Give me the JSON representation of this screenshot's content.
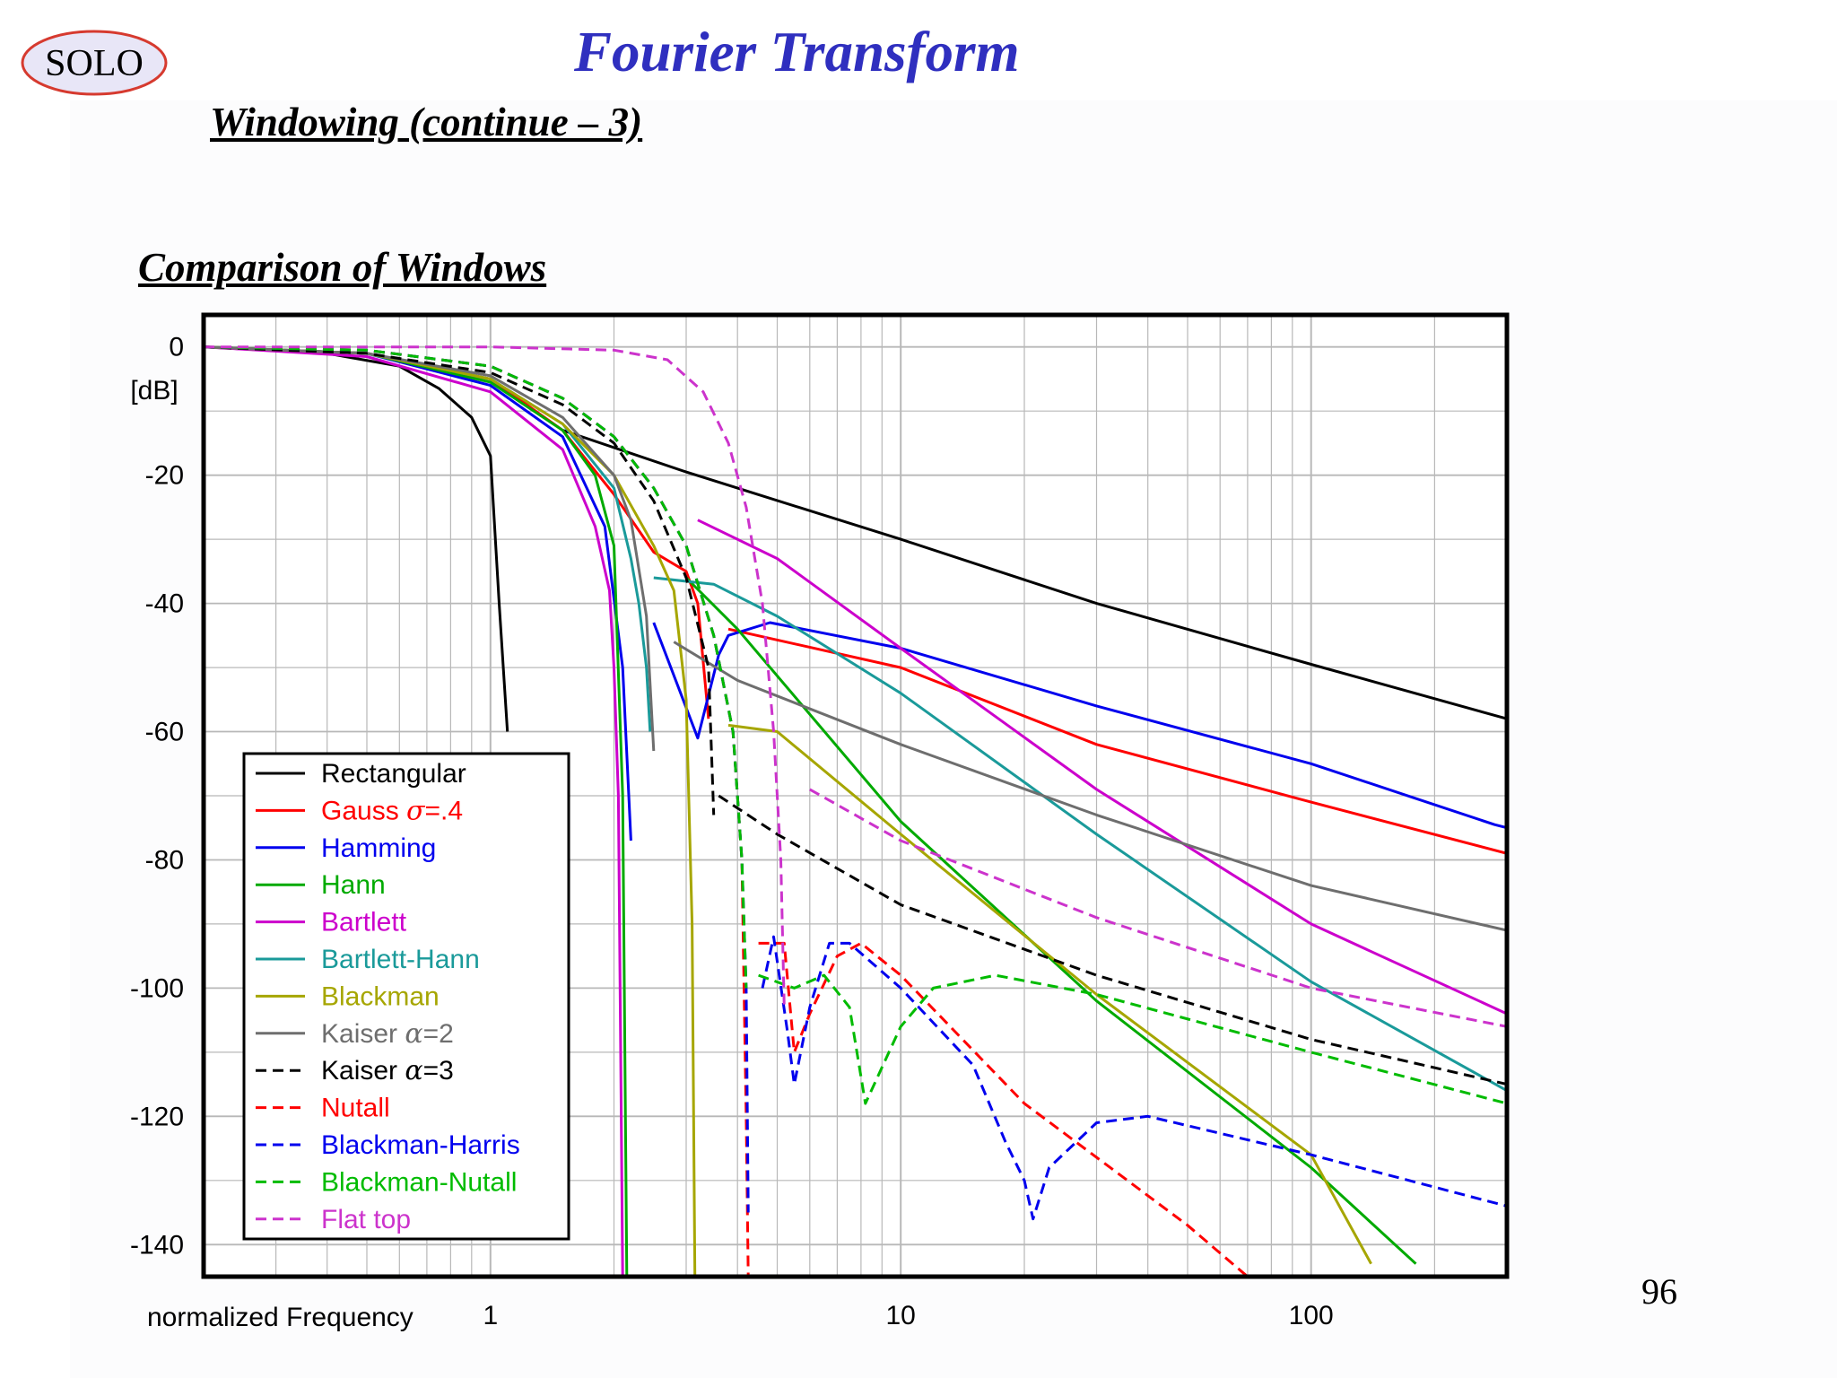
{
  "header": {
    "logo_text": "SOLO",
    "title": "Fourier Transform",
    "subtitle": "Windowing (continue – 3)",
    "section": "Comparison of Windows",
    "page_number": "96"
  },
  "colors": {
    "title": "#2f2fbf",
    "logo_fill": "#e8e6f7",
    "logo_stroke": "#d63a2f"
  },
  "chart_data": {
    "type": "line",
    "x_scale": "log",
    "xlim": [
      0.2,
      300
    ],
    "ylim": [
      -145,
      5
    ],
    "xlabel": "normalized Frequency",
    "ylabel": "[dB]",
    "x_ticks": [
      {
        "value": 1,
        "label": "1"
      },
      {
        "value": 10,
        "label": "10"
      },
      {
        "value": 100,
        "label": "100"
      }
    ],
    "y_ticks": [
      {
        "value": 0,
        "label": "0"
      },
      {
        "value": -20,
        "label": "-20"
      },
      {
        "value": -40,
        "label": "-40"
      },
      {
        "value": -60,
        "label": "-60"
      },
      {
        "value": -80,
        "label": "-80"
      },
      {
        "value": -100,
        "label": "-100"
      },
      {
        "value": -120,
        "label": "-120"
      },
      {
        "value": -140,
        "label": "-140"
      }
    ],
    "grid": true,
    "legend_position": "bottom-left",
    "series": [
      {
        "name": "Rectangular",
        "label_prefix": "Rectangular",
        "symbol": "",
        "label_suffix": "",
        "color": "#000000",
        "dash": false,
        "segments": [
          [
            [
              0.2,
              0
            ],
            [
              0.4,
              -1
            ],
            [
              0.6,
              -3
            ],
            [
              0.75,
              -6.5
            ],
            [
              0.9,
              -11
            ],
            [
              1.0,
              -17
            ],
            [
              1.05,
              -40
            ],
            [
              1.1,
              -60
            ]
          ],
          [
            [
              1.5,
              -13
            ],
            [
              3,
              -19.5
            ],
            [
              10,
              -30
            ],
            [
              30,
              -40
            ],
            [
              100,
              -49.5
            ],
            [
              300,
              -58
            ]
          ]
        ]
      },
      {
        "name": "Gauss σ=.4",
        "label_prefix": "Gauss ",
        "symbol": "σ",
        "label_suffix": "=.4",
        "color": "#ff0000",
        "dash": false,
        "segments": [
          [
            [
              0.2,
              0
            ],
            [
              0.5,
              -1
            ],
            [
              1,
              -5
            ],
            [
              1.5,
              -13
            ],
            [
              2,
              -23
            ],
            [
              2.5,
              -32
            ],
            [
              3,
              -35
            ],
            [
              3.2,
              -40
            ],
            [
              3.4,
              -58
            ]
          ],
          [
            [
              3.8,
              -44
            ],
            [
              10,
              -50
            ],
            [
              30,
              -62
            ],
            [
              100,
              -71
            ],
            [
              300,
              -79
            ]
          ]
        ]
      },
      {
        "name": "Hamming",
        "label_prefix": "Hamming",
        "symbol": "",
        "label_suffix": "",
        "color": "#0000ee",
        "dash": false,
        "segments": [
          [
            [
              0.2,
              0
            ],
            [
              0.5,
              -1
            ],
            [
              1,
              -6
            ],
            [
              1.5,
              -14
            ],
            [
              1.9,
              -28
            ],
            [
              2.1,
              -50
            ],
            [
              2.2,
              -77
            ]
          ],
          [
            [
              2.5,
              -43
            ],
            [
              3.2,
              -61
            ],
            [
              3.6,
              -48
            ],
            [
              3.8,
              -45
            ],
            [
              4.8,
              -43
            ],
            [
              10,
              -47
            ],
            [
              30,
              -56
            ],
            [
              100,
              -65
            ],
            [
              280,
              -74.5
            ],
            [
              300,
              -75
            ]
          ]
        ]
      },
      {
        "name": "Hann",
        "label_prefix": "Hann",
        "symbol": "",
        "label_suffix": "",
        "color": "#00aa00",
        "dash": false,
        "segments": [
          [
            [
              0.2,
              0
            ],
            [
              0.5,
              -1
            ],
            [
              1,
              -5.5
            ],
            [
              1.5,
              -13
            ],
            [
              1.8,
              -20
            ],
            [
              2.0,
              -31
            ],
            [
              2.1,
              -70
            ],
            [
              2.15,
              -145
            ]
          ],
          [
            [
              3.0,
              -36
            ],
            [
              4,
              -44
            ],
            [
              10,
              -74
            ],
            [
              30,
              -102
            ],
            [
              100,
              -128
            ],
            [
              180,
              -143
            ]
          ]
        ]
      },
      {
        "name": "Bartlett",
        "label_prefix": "Bartlett",
        "symbol": "",
        "label_suffix": "",
        "color": "#cc00cc",
        "dash": false,
        "segments": [
          [
            [
              0.2,
              0
            ],
            [
              0.5,
              -1.5
            ],
            [
              1,
              -7
            ],
            [
              1.5,
              -16
            ],
            [
              1.8,
              -28
            ],
            [
              1.95,
              -38
            ],
            [
              2.0,
              -50
            ],
            [
              2.05,
              -70
            ],
            [
              2.1,
              -145
            ]
          ],
          [
            [
              3.2,
              -27
            ],
            [
              5,
              -33
            ],
            [
              10,
              -47
            ],
            [
              30,
              -69
            ],
            [
              100,
              -90
            ],
            [
              300,
              -104
            ]
          ]
        ]
      },
      {
        "name": "Bartlett-Hann",
        "label_prefix": "Bartlett-Hann",
        "symbol": "",
        "label_suffix": "",
        "color": "#1a9a9a",
        "dash": false,
        "segments": [
          [
            [
              0.2,
              0
            ],
            [
              0.5,
              -1
            ],
            [
              1,
              -5
            ],
            [
              1.5,
              -12
            ],
            [
              2,
              -22
            ],
            [
              2.2,
              -33
            ],
            [
              2.3,
              -40
            ],
            [
              2.4,
              -50
            ],
            [
              2.45,
              -60
            ]
          ],
          [
            [
              2.5,
              -36
            ],
            [
              3.5,
              -37
            ],
            [
              5,
              -42
            ],
            [
              10,
              -54
            ],
            [
              30,
              -76
            ],
            [
              100,
              -99
            ],
            [
              300,
              -116
            ]
          ]
        ]
      },
      {
        "name": "Blackman",
        "label_prefix": "Blackman",
        "symbol": "",
        "label_suffix": "",
        "color": "#a6a600",
        "dash": false,
        "segments": [
          [
            [
              0.2,
              0
            ],
            [
              0.5,
              -1
            ],
            [
              1,
              -5
            ],
            [
              1.5,
              -12
            ],
            [
              2,
              -20
            ],
            [
              2.5,
              -31
            ],
            [
              2.8,
              -38
            ],
            [
              3.0,
              -55
            ],
            [
              3.1,
              -90
            ],
            [
              3.15,
              -145
            ]
          ],
          [
            [
              3.8,
              -59
            ],
            [
              5,
              -60
            ],
            [
              10,
              -76
            ],
            [
              30,
              -101
            ],
            [
              100,
              -126
            ],
            [
              140,
              -143
            ]
          ]
        ]
      },
      {
        "name": "Kaiser α=2",
        "label_prefix": "Kaiser ",
        "symbol": "α",
        "label_suffix": "=2",
        "color": "#6e6e6e",
        "dash": false,
        "segments": [
          [
            [
              0.2,
              0
            ],
            [
              0.5,
              -1
            ],
            [
              1,
              -4.5
            ],
            [
              1.5,
              -11
            ],
            [
              2,
              -20
            ],
            [
              2.2,
              -27
            ],
            [
              2.4,
              -42
            ],
            [
              2.5,
              -63
            ]
          ],
          [
            [
              2.8,
              -46
            ],
            [
              4,
              -52
            ],
            [
              10,
              -62
            ],
            [
              30,
              -73
            ],
            [
              100,
              -84
            ],
            [
              300,
              -91
            ]
          ]
        ]
      },
      {
        "name": "Kaiser α=3",
        "label_prefix": "Kaiser ",
        "symbol": "α",
        "label_suffix": "=3",
        "color": "#000000",
        "dash": true,
        "segments": [
          [
            [
              0.2,
              0
            ],
            [
              0.5,
              -1
            ],
            [
              1,
              -4
            ],
            [
              1.5,
              -9
            ],
            [
              2,
              -15
            ],
            [
              2.5,
              -24
            ],
            [
              3,
              -36
            ],
            [
              3.4,
              -50
            ],
            [
              3.5,
              -73
            ]
          ],
          [
            [
              3.6,
              -70
            ],
            [
              5,
              -76
            ],
            [
              10,
              -87
            ],
            [
              30,
              -98
            ],
            [
              100,
              -108
            ],
            [
              300,
              -115
            ]
          ]
        ]
      },
      {
        "name": "Nutall",
        "label_prefix": "Nutall",
        "symbol": "",
        "label_suffix": "",
        "color": "#ff0000",
        "dash": true,
        "segments": [
          [
            [
              0.2,
              0
            ],
            [
              0.5,
              -0.5
            ],
            [
              1,
              -3
            ],
            [
              1.5,
              -8
            ],
            [
              2,
              -14
            ],
            [
              2.5,
              -22
            ],
            [
              3,
              -31
            ],
            [
              3.5,
              -45
            ],
            [
              3.9,
              -60
            ],
            [
              4.1,
              -80
            ],
            [
              4.2,
              -120
            ],
            [
              4.25,
              -145
            ]
          ],
          [
            [
              4.5,
              -93
            ],
            [
              5.2,
              -93
            ],
            [
              5.5,
              -110
            ],
            [
              6,
              -104
            ],
            [
              7,
              -95
            ],
            [
              8,
              -93
            ],
            [
              10,
              -98
            ],
            [
              20,
              -118
            ],
            [
              50,
              -137
            ],
            [
              70,
              -145
            ]
          ]
        ]
      },
      {
        "name": "Blackman-Harris",
        "label_prefix": "Blackman-Harris",
        "symbol": "",
        "label_suffix": "",
        "color": "#0000ee",
        "dash": true,
        "segments": [
          [
            [
              0.2,
              0
            ],
            [
              0.5,
              -0.5
            ],
            [
              1,
              -3
            ],
            [
              1.5,
              -8
            ],
            [
              2,
              -14
            ],
            [
              2.5,
              -22
            ],
            [
              3,
              -31
            ],
            [
              3.5,
              -45
            ],
            [
              3.9,
              -60
            ],
            [
              4.1,
              -80
            ],
            [
              4.2,
              -100
            ],
            [
              4.25,
              -135
            ]
          ],
          [
            [
              4.6,
              -100
            ],
            [
              4.9,
              -92
            ],
            [
              5.3,
              -107
            ],
            [
              5.5,
              -115
            ],
            [
              6,
              -103
            ],
            [
              6.7,
              -93
            ],
            [
              7.5,
              -93
            ],
            [
              10,
              -100
            ],
            [
              15,
              -112
            ],
            [
              18,
              -124
            ],
            [
              20,
              -130
            ],
            [
              21,
              -136
            ],
            [
              23,
              -128
            ],
            [
              30,
              -121
            ],
            [
              40,
              -120
            ],
            [
              100,
              -126
            ],
            [
              300,
              -134
            ]
          ]
        ]
      },
      {
        "name": "Blackman-Nutall",
        "label_prefix": "Blackman-Nutall",
        "symbol": "",
        "label_suffix": "",
        "color": "#00bb00",
        "dash": true,
        "segments": [
          [
            [
              0.2,
              0
            ],
            [
              0.5,
              -0.5
            ],
            [
              1,
              -3
            ],
            [
              1.5,
              -8
            ],
            [
              2,
              -14
            ],
            [
              2.5,
              -22
            ],
            [
              3,
              -31
            ],
            [
              3.5,
              -45
            ],
            [
              3.9,
              -60
            ],
            [
              4.1,
              -80
            ],
            [
              4.2,
              -100
            ]
          ],
          [
            [
              4.5,
              -98
            ],
            [
              5.5,
              -100
            ],
            [
              6.5,
              -98
            ],
            [
              7.5,
              -103
            ],
            [
              8.2,
              -118
            ],
            [
              10,
              -106
            ],
            [
              12,
              -100
            ],
            [
              17,
              -98
            ],
            [
              30,
              -101
            ],
            [
              100,
              -110
            ],
            [
              300,
              -118
            ]
          ]
        ]
      },
      {
        "name": "Flat top",
        "label_prefix": "Flat top",
        "symbol": "",
        "label_suffix": "",
        "color": "#cc33cc",
        "dash": true,
        "segments": [
          [
            [
              0.2,
              0
            ],
            [
              1,
              0
            ],
            [
              2,
              -0.5
            ],
            [
              2.7,
              -2
            ],
            [
              3.3,
              -7
            ],
            [
              3.8,
              -15
            ],
            [
              4.2,
              -25
            ],
            [
              4.6,
              -40
            ],
            [
              4.9,
              -60
            ],
            [
              5.1,
              -80
            ],
            [
              5.2,
              -103
            ]
          ],
          [
            [
              6,
              -69
            ],
            [
              10,
              -77
            ],
            [
              30,
              -89
            ],
            [
              100,
              -100
            ],
            [
              300,
              -106
            ]
          ]
        ]
      }
    ]
  }
}
